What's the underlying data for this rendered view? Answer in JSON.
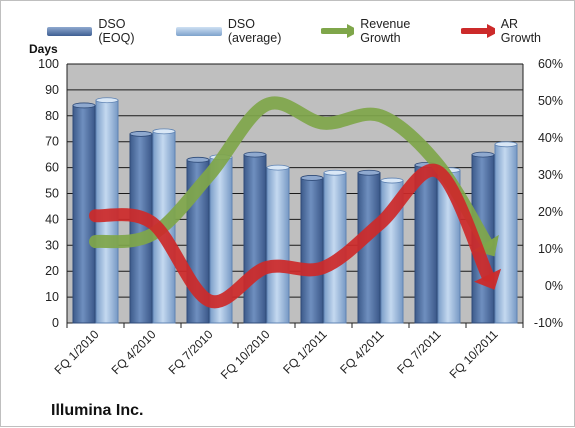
{
  "company_title": "Illumina Inc.",
  "colors": {
    "dso_eoq": "#5574a4",
    "dso_average": "#8eb0d6",
    "revenue_growth": "#7fa64a",
    "ar_growth": "#cc2a2a",
    "plot_background": "#bfbfbf",
    "gridline": "#1a1a1a"
  },
  "chart_data": {
    "type": "bar",
    "title": "",
    "ylabel": "Days",
    "y2label": "",
    "categories": [
      "FQ 1/2010",
      "FQ 4/2010",
      "FQ 7/2010",
      "FQ 10/2010",
      "FQ 1/2011",
      "FQ 4/2011",
      "FQ 7/2011",
      "FQ 10/2011"
    ],
    "ylim": [
      0,
      100
    ],
    "yticks": [
      "0",
      "10",
      "20",
      "30",
      "40",
      "50",
      "60",
      "70",
      "80",
      "90",
      "100"
    ],
    "y2lim": [
      -10,
      60
    ],
    "y2ticks": [
      "-10%",
      "0%",
      "10%",
      "20%",
      "30%",
      "40%",
      "50%",
      "60%"
    ],
    "legend_position": "top",
    "grid": true,
    "series": [
      {
        "name": "DSO (EOQ)",
        "type": "bar",
        "values": [
          84,
          73,
          63,
          65,
          56,
          58,
          61,
          65
        ]
      },
      {
        "name": "DSO (average)",
        "type": "bar",
        "values": [
          86,
          74,
          64,
          60,
          58,
          55,
          59,
          69
        ]
      },
      {
        "name": "Revenue Growth",
        "type": "line",
        "axis": "right",
        "values": [
          12,
          14,
          30,
          49,
          44,
          46,
          33,
          8
        ]
      },
      {
        "name": "AR Growth",
        "type": "line",
        "axis": "right",
        "values": [
          19,
          17,
          -4,
          5,
          5,
          17,
          31,
          -1
        ]
      }
    ]
  }
}
